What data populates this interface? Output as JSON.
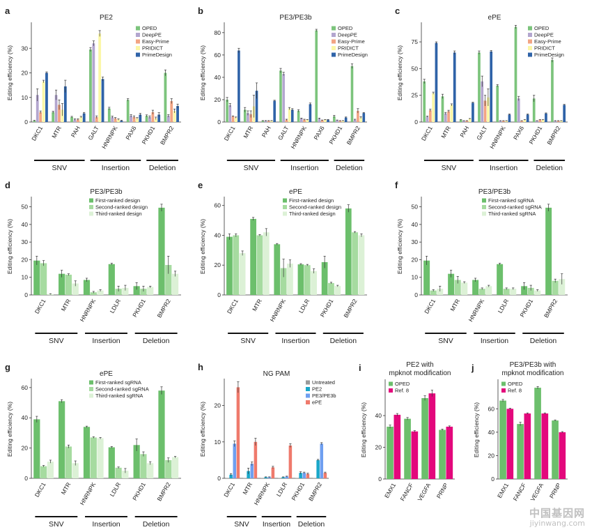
{
  "watermark": {
    "chinese": "中国基因网",
    "url": "jiyinwang.com"
  },
  "chart_data": [
    {
      "panel": "a",
      "type": "bar",
      "title": "PE2",
      "ylabel": "Editing efficiency (%)",
      "ylim": [
        0,
        40
      ],
      "yticks": [
        0,
        10,
        20,
        30
      ],
      "legend_position": "top-right",
      "categories": [
        "DKC1",
        "MTR",
        "PAH",
        "GALT",
        "HNRNPK",
        "PAX6",
        "PKHD1",
        "BMPR2"
      ],
      "groups": [
        {
          "label": "SNV",
          "from": 0,
          "to": 2
        },
        {
          "label": "Insertion",
          "from": 3,
          "to": 5
        },
        {
          "label": "Deletion",
          "from": 6,
          "to": 7
        }
      ],
      "series": [
        {
          "name": "OPED",
          "color": "#7cc47c",
          "values": [
            0.5,
            4,
            2,
            29.5,
            5.5,
            9,
            2.5,
            20
          ],
          "errors": [
            0.2,
            0.4,
            0.3,
            0.8,
            0.5,
            0.5,
            0.4,
            1.2
          ]
        },
        {
          "name": "DeepPE",
          "color": "#b3a6cf",
          "values": [
            11,
            11,
            1,
            32,
            2,
            2.5,
            2,
            2.5
          ],
          "errors": [
            2.5,
            2,
            0.3,
            1,
            0.4,
            0.5,
            0.5,
            0.5
          ]
        },
        {
          "name": "Easy-Prime",
          "color": "#f2a483",
          "values": [
            4,
            7,
            1,
            2,
            1.5,
            2,
            4,
            8.5
          ],
          "errors": [
            0.5,
            2,
            0.3,
            0.5,
            0.3,
            0.5,
            0.8,
            1
          ]
        },
        {
          "name": "PRIDICT",
          "color": "#fbf7a6",
          "values": [
            16.5,
            5,
            2,
            36,
            1,
            1.5,
            1.5,
            4.5
          ],
          "errors": [
            0.5,
            2.5,
            0.3,
            1.2,
            0.3,
            0.3,
            0.5,
            0.8
          ]
        },
        {
          "name": "PrimeDesign",
          "color": "#2f63a8",
          "values": [
            20,
            14.5,
            3.5,
            17.5,
            0.5,
            3,
            3,
            6.5
          ],
          "errors": [
            0.4,
            2.5,
            0.4,
            0.8,
            0.2,
            0.5,
            0.8,
            0.8
          ]
        }
      ]
    },
    {
      "panel": "b",
      "type": "bar",
      "title": "PE3/PE3b",
      "ylabel": "Editing efficiency (%)",
      "ylim": [
        0,
        88
      ],
      "yticks": [
        0,
        20,
        40,
        60,
        80
      ],
      "legend_position": "top-right",
      "categories": [
        "DKC1",
        "MTR",
        "PAH",
        "GALT",
        "HNRNPK",
        "PAX6",
        "PKHD1",
        "BMPR2"
      ],
      "groups": [
        {
          "label": "SNV",
          "from": 0,
          "to": 2
        },
        {
          "label": "Insertion",
          "from": 3,
          "to": 5
        },
        {
          "label": "Deletion",
          "from": 6,
          "to": 7
        }
      ],
      "series": [
        {
          "name": "OPED",
          "color": "#7cc47c",
          "values": [
            20,
            11,
            1,
            46,
            10,
            82,
            5,
            50
          ],
          "errors": [
            2,
            2,
            0.3,
            2,
            1,
            1,
            1,
            2
          ]
        },
        {
          "name": "DeepPE",
          "color": "#b3a6cf",
          "values": [
            15,
            8,
            1,
            43,
            3,
            3,
            1.5,
            2
          ],
          "errors": [
            1.5,
            2,
            0.3,
            1.5,
            0.5,
            0.5,
            0.3,
            0.5
          ]
        },
        {
          "name": "Easy-Prime",
          "color": "#f2a483",
          "values": [
            5,
            7,
            1,
            2,
            2,
            1.5,
            1,
            10
          ],
          "errors": [
            0.5,
            3,
            0.3,
            0.5,
            0.5,
            0.3,
            0.3,
            2
          ]
        },
        {
          "name": "PRIDICT",
          "color": "#fbf7a6",
          "values": [
            4,
            14,
            1,
            12,
            2,
            2,
            1,
            4
          ],
          "errors": [
            0.5,
            10,
            0.3,
            1,
            0.3,
            0.3,
            0.3,
            0.8
          ]
        },
        {
          "name": "PrimeDesign",
          "color": "#2f63a8",
          "values": [
            64,
            28,
            19,
            11,
            16,
            2,
            4,
            8
          ],
          "errors": [
            2,
            7,
            0.5,
            1,
            1,
            0.3,
            0.5,
            0.5
          ]
        }
      ]
    },
    {
      "panel": "c",
      "type": "bar",
      "title": "ePE",
      "ylabel": "Editing efficiency (%)",
      "ylim": [
        0,
        92
      ],
      "yticks": [
        0,
        25,
        50,
        75
      ],
      "legend_position": "top-right",
      "categories": [
        "DKC1",
        "MTR",
        "PAH",
        "GALT",
        "HNRNPK",
        "PAX6",
        "PKHD1",
        "BMPR2"
      ],
      "groups": [
        {
          "label": "SNV",
          "from": 0,
          "to": 2
        },
        {
          "label": "Insertion",
          "from": 3,
          "to": 5
        },
        {
          "label": "Deletion",
          "from": 6,
          "to": 7
        }
      ],
      "series": [
        {
          "name": "OPED",
          "color": "#7cc47c",
          "values": [
            38,
            24,
            2,
            65,
            34,
            89,
            22,
            58
          ],
          "errors": [
            2,
            2,
            0.3,
            1.5,
            1,
            1.5,
            3,
            2
          ]
        },
        {
          "name": "DeepPE",
          "color": "#b3a6cf",
          "values": [
            5,
            8,
            1,
            38,
            1,
            22,
            1,
            1
          ],
          "errors": [
            0.5,
            1,
            0.3,
            5,
            0.3,
            2,
            0.3,
            0.3
          ]
        },
        {
          "name": "Easy-Prime",
          "color": "#f2a483",
          "values": [
            11,
            10,
            1,
            20,
            1,
            1,
            2,
            1
          ],
          "errors": [
            1,
            1,
            0.3,
            5,
            0.3,
            0.3,
            0.3,
            0.3
          ]
        },
        {
          "name": "PRIDICT",
          "color": "#fbf7a6",
          "values": [
            27,
            16,
            3,
            23,
            1,
            2,
            2,
            1
          ],
          "errors": [
            1,
            1,
            0.3,
            8,
            0.3,
            0.3,
            0.3,
            0.3
          ]
        },
        {
          "name": "PrimeDesign",
          "color": "#2f63a8",
          "values": [
            74,
            65,
            18,
            66,
            7,
            7,
            8,
            16
          ],
          "errors": [
            1,
            1.5,
            0.5,
            1,
            0.5,
            0.5,
            0.5,
            0.5
          ]
        }
      ]
    },
    {
      "panel": "d",
      "type": "bar",
      "title": "PE3/PE3b",
      "ylabel": "Editing efficiency (%)",
      "ylim": [
        0,
        55
      ],
      "yticks": [
        0,
        10,
        20,
        30,
        40,
        50
      ],
      "legend_position": "top-right",
      "categories": [
        "DKC1",
        "MTR",
        "HNRNPK",
        "LDLR",
        "PKHD1",
        "BMPR2"
      ],
      "groups": [
        {
          "label": "SNV",
          "from": 0,
          "to": 1
        },
        {
          "label": "Insertion",
          "from": 2,
          "to": 3
        },
        {
          "label": "Deletion",
          "from": 4,
          "to": 5
        }
      ],
      "series": [
        {
          "name": "First-ranked design",
          "color": "#6cbf6c",
          "values": [
            19.5,
            12,
            8.5,
            17.5,
            5,
            49.5
          ],
          "errors": [
            2.5,
            2,
            1,
            0.5,
            2,
            2
          ]
        },
        {
          "name": "Second-ranked design",
          "color": "#a6dba0",
          "values": [
            18,
            11.5,
            1.5,
            3.5,
            3.5,
            17
          ],
          "errors": [
            1.5,
            0.5,
            0.5,
            1.5,
            1.5,
            5
          ]
        },
        {
          "name": "Third-ranked design",
          "color": "#dcf1d6",
          "values": [
            0.5,
            6.5,
            2.5,
            4,
            4.5,
            12
          ],
          "errors": [
            0.2,
            1.5,
            0.5,
            1.5,
            0.5,
            1.5
          ]
        }
      ]
    },
    {
      "panel": "e",
      "type": "bar",
      "title": "ePE",
      "ylabel": "Editing efficiency (%)",
      "ylim": [
        0,
        65
      ],
      "yticks": [
        0,
        20,
        40,
        60
      ],
      "legend_position": "top-right",
      "categories": [
        "DKC1",
        "MTR",
        "HNRNPK",
        "LDLR",
        "PKHD1",
        "BMPR2"
      ],
      "groups": [
        {
          "label": "SNV",
          "from": 0,
          "to": 1
        },
        {
          "label": "Insertion",
          "from": 2,
          "to": 3
        },
        {
          "label": "Deletion",
          "from": 4,
          "to": 5
        }
      ],
      "series": [
        {
          "name": "First-ranked design",
          "color": "#6cbf6c",
          "values": [
            39,
            51,
            34,
            20.5,
            22,
            58
          ],
          "errors": [
            2,
            1,
            0.5,
            0.5,
            4,
            2.5
          ]
        },
        {
          "name": "Second-ranked design",
          "color": "#a6dba0",
          "values": [
            40,
            40,
            18,
            20,
            8,
            42
          ],
          "errors": [
            1,
            0.5,
            6,
            0.5,
            0.5,
            0.5
          ]
        },
        {
          "name": "Third-ranked design",
          "color": "#dcf1d6",
          "values": [
            28,
            42,
            21,
            16,
            6,
            40
          ],
          "errors": [
            1.5,
            2.5,
            2.5,
            1.5,
            0.5,
            1
          ]
        }
      ]
    },
    {
      "panel": "f",
      "type": "bar",
      "title": "PE3/PE3b",
      "ylabel": "Editing efficiency (%)",
      "ylim": [
        0,
        55
      ],
      "yticks": [
        0,
        10,
        20,
        30,
        40,
        50
      ],
      "legend_position": "top-right",
      "categories": [
        "DKC1",
        "MTR",
        "HNRNPK",
        "LDLR",
        "PKHD1",
        "BMPR2"
      ],
      "groups": [
        {
          "label": "SNV",
          "from": 0,
          "to": 1
        },
        {
          "label": "Insertion",
          "from": 2,
          "to": 3
        },
        {
          "label": "Deletion",
          "from": 4,
          "to": 5
        }
      ],
      "series": [
        {
          "name": "First-ranked sgRNA",
          "color": "#6cbf6c",
          "values": [
            19.5,
            12,
            8.5,
            17.5,
            5,
            49.5
          ],
          "errors": [
            2.5,
            2,
            1,
            0.5,
            2,
            2
          ]
        },
        {
          "name": "Second-ranked sgRNA",
          "color": "#a6dba0",
          "values": [
            2.5,
            8.5,
            3.5,
            3.5,
            4,
            8
          ],
          "errors": [
            0.5,
            2,
            0.5,
            0.5,
            1.5,
            1
          ]
        },
        {
          "name": "Third-ranked sgRNA",
          "color": "#dcf1d6",
          "values": [
            3.5,
            7,
            5,
            3.5,
            2.5,
            9
          ],
          "errors": [
            1.5,
            0.5,
            0.5,
            0.5,
            0.5,
            3
          ]
        }
      ]
    },
    {
      "panel": "g",
      "type": "bar",
      "title": "ePE",
      "ylabel": "Editing efficiency (%)",
      "ylim": [
        0,
        65
      ],
      "yticks": [
        0,
        20,
        40,
        60
      ],
      "legend_position": "top-right",
      "categories": [
        "DKC1",
        "MTR",
        "HNRNPK",
        "LDLR",
        "PKHD1",
        "BMPR2"
      ],
      "groups": [
        {
          "label": "SNV",
          "from": 0,
          "to": 1
        },
        {
          "label": "Insertion",
          "from": 2,
          "to": 3
        },
        {
          "label": "Deletion",
          "from": 4,
          "to": 5
        }
      ],
      "series": [
        {
          "name": "First-ranked sgRNA",
          "color": "#6cbf6c",
          "values": [
            39,
            51,
            34,
            20.5,
            22,
            58
          ],
          "errors": [
            2,
            1,
            0.5,
            0.5,
            4,
            2.5
          ]
        },
        {
          "name": "Second-ranked sgRNA",
          "color": "#a6dba0",
          "values": [
            8,
            21,
            27,
            7,
            16,
            12
          ],
          "errors": [
            0.5,
            1,
            0.5,
            0.5,
            1.5,
            1.5
          ]
        },
        {
          "name": "Third-ranked sgRNA",
          "color": "#dcf1d6",
          "values": [
            11,
            10,
            26.5,
            5,
            10,
            14
          ],
          "errors": [
            1,
            1.5,
            0.5,
            1.5,
            1,
            0.5
          ]
        }
      ]
    },
    {
      "panel": "h",
      "type": "bar",
      "title": "NG PAM",
      "ylabel": "Editing efficiency (%)",
      "ylim": [
        0,
        27
      ],
      "yticks": [
        0,
        10,
        20
      ],
      "legend_position": "top-right",
      "categories": [
        "DKC1",
        "MTR",
        "HNRNPK",
        "LDLR",
        "PKHD1",
        "BMPR2"
      ],
      "groups": [
        {
          "label": "SNV",
          "from": 0,
          "to": 1
        },
        {
          "label": "Insertion",
          "from": 2,
          "to": 3
        },
        {
          "label": "Deletion",
          "from": 4,
          "to": 5
        }
      ],
      "series": [
        {
          "name": "Untreated",
          "color": "#9a9a9a",
          "values": [
            0.1,
            0.1,
            0.1,
            0.1,
            0.1,
            0.1
          ],
          "errors": [
            0,
            0,
            0,
            0,
            0,
            0
          ]
        },
        {
          "name": "PE2",
          "color": "#19a7c9",
          "values": [
            1,
            2,
            0.3,
            0.3,
            1.5,
            5
          ],
          "errors": [
            0.3,
            0.8,
            0.1,
            0.1,
            0.3,
            0.2
          ]
        },
        {
          "name": "PE3/PE3b",
          "color": "#6f9ff0",
          "values": [
            9.5,
            4,
            0.3,
            0.5,
            1.5,
            9.5
          ],
          "errors": [
            0.8,
            0.5,
            0.1,
            0.1,
            0.2,
            0.3
          ]
        },
        {
          "name": "ePE",
          "color": "#ef7a6c",
          "values": [
            25,
            10,
            3,
            9,
            1.2,
            1.5
          ],
          "errors": [
            1.5,
            1,
            0.3,
            0.5,
            0.2,
            0.2
          ]
        }
      ]
    },
    {
      "panel": "i",
      "type": "bar",
      "title": "PE2 with mpknot modification",
      "ylabel": "Editing efficiency (%)",
      "ylim": [
        0,
        62
      ],
      "yticks": [
        0,
        20,
        40
      ],
      "legend_position": "top-left",
      "categories": [
        "EMX1",
        "FANCF",
        "VEGFA",
        "PRNP"
      ],
      "series": [
        {
          "name": "OPED",
          "color": "#6cbf6c",
          "values": [
            33,
            38,
            51,
            31
          ],
          "errors": [
            1,
            0.8,
            1.5,
            0.5
          ]
        },
        {
          "name": "Ref. 8",
          "color": "#e3087c",
          "values": [
            40.5,
            30,
            54,
            33
          ],
          "errors": [
            0.8,
            0.5,
            2,
            0.5
          ]
        }
      ]
    },
    {
      "panel": "j",
      "type": "bar",
      "title": "PE3/PE3b with mpknot modification",
      "ylabel": "Editing efficiency (%)",
      "ylim": [
        0,
        84
      ],
      "yticks": [
        0,
        20,
        40,
        60
      ],
      "legend_position": "top-left",
      "categories": [
        "EMX1",
        "FANCF",
        "VEGFA",
        "PRNP"
      ],
      "series": [
        {
          "name": "OPED",
          "color": "#6cbf6c",
          "values": [
            67,
            47,
            78,
            50
          ],
          "errors": [
            1,
            1.5,
            1,
            0.5
          ]
        },
        {
          "name": "Ref. 8",
          "color": "#e3087c",
          "values": [
            60,
            56,
            56,
            40
          ],
          "errors": [
            0.5,
            0.5,
            0.5,
            0.5
          ]
        }
      ]
    }
  ]
}
